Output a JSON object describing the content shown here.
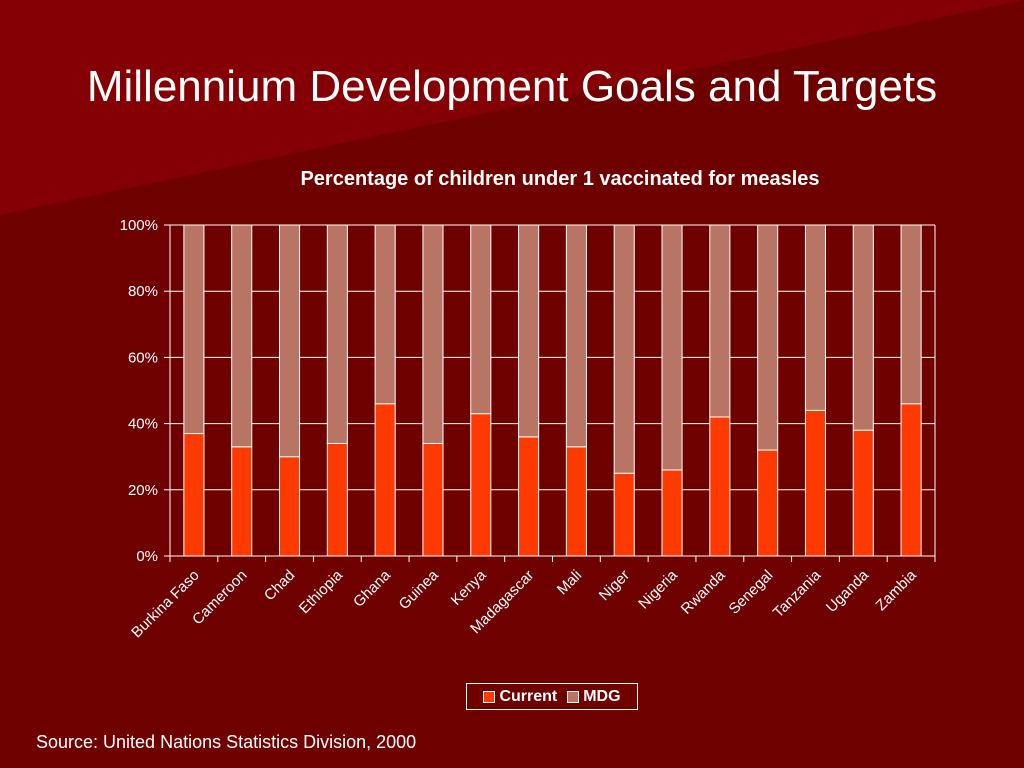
{
  "slide": {
    "title": "Millennium Development Goals and Targets",
    "source": "Source: United Nations Statistics Division, 2000"
  },
  "colors": {
    "current": "#ff3a00",
    "mdg": "#b87563",
    "grid": "#ffffff",
    "text": "#ffffff"
  },
  "chart_data": {
    "type": "bar",
    "stacked": true,
    "percent_stacked": true,
    "title": "Percentage of children under 1 vaccinated for measles",
    "xlabel": "",
    "ylabel": "",
    "ylim": [
      0,
      100
    ],
    "yticks": [
      "0%",
      "20%",
      "40%",
      "60%",
      "80%",
      "100%"
    ],
    "categories": [
      "Burkina Faso",
      "Cameroon",
      "Chad",
      "Ethiopia",
      "Ghana",
      "Guinea",
      "Kenya",
      "Madagascar",
      "Mali",
      "Niger",
      "Nigeria",
      "Rwanda",
      "Senegal",
      "Tanzania",
      "Uganda",
      "Zambia"
    ],
    "series": [
      {
        "name": "Current",
        "values": [
          37,
          33,
          30,
          34,
          46,
          34,
          43,
          36,
          33,
          25,
          26,
          42,
          32,
          44,
          38,
          46
        ]
      },
      {
        "name": "MDG",
        "values": [
          63,
          67,
          70,
          66,
          54,
          66,
          57,
          64,
          67,
          75,
          74,
          58,
          68,
          56,
          62,
          54
        ]
      }
    ],
    "legend": {
      "position": "bottom",
      "entries": [
        "Current",
        "MDG"
      ]
    },
    "grid": true
  }
}
